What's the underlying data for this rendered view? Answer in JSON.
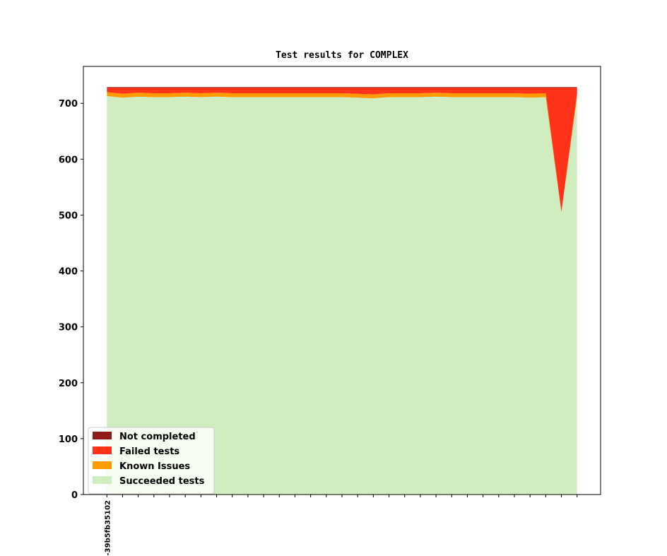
{
  "chart_data": {
    "type": "stacked_area",
    "title": "Test results for COMPLEX",
    "categories": [
      "-39b5fb35102",
      null,
      null,
      null,
      null,
      null,
      null,
      null,
      null,
      null,
      null,
      null,
      null,
      null,
      null,
      null,
      null,
      null,
      null,
      null,
      null,
      null,
      null,
      null,
      null,
      null,
      null,
      null,
      null,
      null,
      null
    ],
    "series": [
      {
        "name": "Succeeded tests",
        "color": "#cfedbf",
        "values": [
          713,
          710,
          712,
          711,
          711,
          712,
          711,
          712,
          711,
          711,
          711,
          711,
          711,
          711,
          711,
          711,
          710,
          709,
          711,
          711,
          711,
          712,
          711,
          711,
          711,
          711,
          711,
          710,
          711,
          505,
          712
        ]
      },
      {
        "name": "Known Issues",
        "color": "#ff9a00",
        "values": [
          7,
          7,
          7,
          7,
          7,
          7,
          7,
          7,
          7,
          7,
          7,
          7,
          7,
          7,
          7,
          7,
          7,
          7,
          7,
          7,
          7,
          7,
          7,
          7,
          7,
          7,
          7,
          7,
          7,
          1,
          6
        ]
      },
      {
        "name": "Failed tests",
        "color": "#ff321a",
        "values": [
          8,
          11,
          9,
          10,
          10,
          9,
          10,
          9,
          10,
          10,
          10,
          10,
          10,
          10,
          10,
          10,
          11,
          12,
          10,
          10,
          10,
          9,
          10,
          10,
          10,
          10,
          10,
          11,
          10,
          222,
          10
        ]
      },
      {
        "name": "Not completed",
        "color": "#8f1a1a",
        "values": [
          1,
          1,
          1,
          1,
          1,
          1,
          1,
          1,
          1,
          1,
          1,
          1,
          1,
          1,
          1,
          1,
          1,
          1,
          1,
          1,
          1,
          1,
          1,
          1,
          1,
          1,
          1,
          1,
          1,
          1,
          1
        ]
      }
    ],
    "ylim": [
      0,
      766
    ],
    "yticks": [
      0,
      100,
      200,
      300,
      400,
      500,
      600,
      700
    ],
    "legend": "lower left"
  }
}
